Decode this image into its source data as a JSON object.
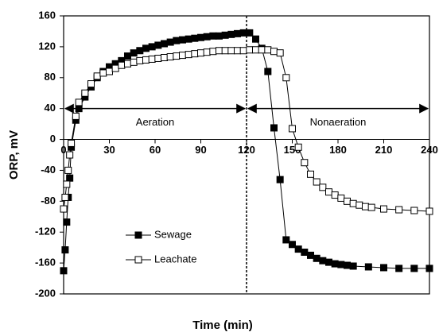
{
  "chart_data": {
    "type": "line",
    "xlabel": "Time (min)",
    "ylabel": "ORP, mV",
    "xlim": [
      0,
      240
    ],
    "xticks": [
      0,
      30,
      60,
      90,
      120,
      150,
      180,
      210,
      240
    ],
    "ylim": [
      -200,
      160
    ],
    "yticks": [
      -200,
      -160,
      -120,
      -80,
      -40,
      0,
      40,
      80,
      120,
      160
    ],
    "divider_x": 120,
    "annotations": [
      {
        "text": "Aeration",
        "x": [
          0,
          120
        ],
        "y": 40
      },
      {
        "text": "Nonaeration",
        "x": [
          120,
          240
        ],
        "y": 40
      }
    ],
    "series": [
      {
        "name": "Sewage",
        "color": "#000000",
        "marker": "filled-square",
        "x": [
          0,
          1,
          2,
          3,
          4,
          5,
          8,
          10,
          14,
          18,
          22,
          26,
          30,
          34,
          38,
          42,
          46,
          50,
          54,
          58,
          62,
          66,
          70,
          74,
          78,
          82,
          86,
          90,
          94,
          98,
          102,
          106,
          110,
          114,
          118,
          122,
          126,
          130,
          134,
          138,
          142,
          146,
          150,
          154,
          158,
          162,
          166,
          170,
          174,
          178,
          182,
          186,
          190,
          200,
          210,
          220,
          230,
          240
        ],
        "values": [
          -170,
          -143,
          -107,
          -75,
          -50,
          -10,
          25,
          40,
          55,
          68,
          80,
          88,
          94,
          98,
          102,
          108,
          112,
          115,
          118,
          120,
          122,
          124,
          126,
          128,
          129,
          130,
          131,
          132,
          133,
          134,
          134,
          135,
          136,
          137,
          138,
          138,
          130,
          118,
          88,
          15,
          -52,
          -130,
          -136,
          -142,
          -146,
          -150,
          -154,
          -157,
          -159,
          -161,
          -162,
          -163,
          -164,
          -165,
          -166,
          -167,
          -167,
          -167
        ]
      },
      {
        "name": "Leachate",
        "color": "#000000",
        "marker": "open-square",
        "x": [
          0,
          1,
          2,
          3,
          4,
          5,
          8,
          10,
          14,
          18,
          22,
          26,
          30,
          34,
          38,
          42,
          46,
          50,
          54,
          58,
          62,
          66,
          70,
          74,
          78,
          82,
          86,
          90,
          94,
          98,
          102,
          106,
          110,
          114,
          118,
          122,
          126,
          130,
          134,
          138,
          142,
          146,
          150,
          154,
          158,
          162,
          166,
          170,
          174,
          178,
          182,
          186,
          190,
          194,
          198,
          202,
          210,
          220,
          230,
          240
        ],
        "values": [
          -90,
          -75,
          -58,
          -40,
          -20,
          -5,
          30,
          48,
          60,
          72,
          82,
          86,
          88,
          92,
          96,
          98,
          100,
          102,
          103,
          104,
          105,
          106,
          107,
          108,
          109,
          110,
          111,
          112,
          113,
          114,
          115,
          115,
          115,
          115,
          115,
          116,
          116,
          116,
          116,
          114,
          112,
          80,
          14,
          -10,
          -30,
          -45,
          -55,
          -62,
          -68,
          -72,
          -76,
          -80,
          -83,
          -85,
          -87,
          -88,
          -90,
          -91,
          -92,
          -93
        ]
      }
    ]
  }
}
